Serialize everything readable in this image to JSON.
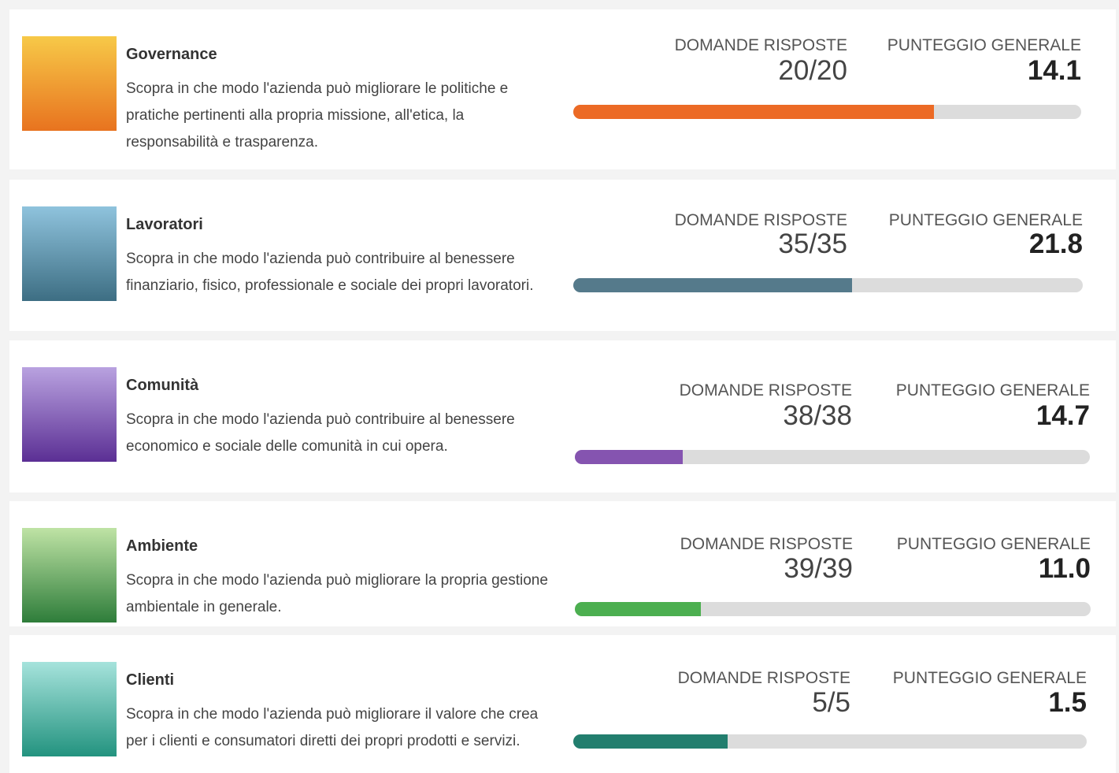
{
  "labels": {
    "answered": "DOMANDE RISPOSTE",
    "score": "PUNTEGGIO GENERALE"
  },
  "sections": [
    {
      "title": "Governance",
      "description": "Scopra in che modo l'azienda può migliorare le politiche e pratiche pertinenti alla propria missione, all'etica, la responsabilità e trasparenza.",
      "answered": "20/20",
      "score": "14.1",
      "progress": 0.71,
      "color": "#ec6a25",
      "thumb": [
        "#f7c948",
        "#e8731f"
      ]
    },
    {
      "title": "Lavoratori",
      "description": "Scopra in che modo l'azienda può contribuire al benessere finanziario, fisico, professionale e sociale dei propri lavoratori.",
      "answered": "35/35",
      "score": "21.8",
      "progress": 0.547,
      "color": "#557a8b",
      "thumb": [
        "#8fc3dd",
        "#3d6e83"
      ]
    },
    {
      "title": "Comunità",
      "description": "Scopra in che modo l'azienda può contribuire al benessere economico e sociale delle comunità in cui opera.",
      "answered": "38/38",
      "score": "14.7",
      "progress": 0.21,
      "color": "#8554b0",
      "thumb": [
        "#b9a2e0",
        "#5b2f94"
      ]
    },
    {
      "title": "Ambiente",
      "description": "Scopra in che modo l'azienda può migliorare la propria gestione ambientale in generale.",
      "answered": "39/39",
      "score": "11.0",
      "progress": 0.245,
      "color": "#4caf50",
      "thumb": [
        "#bfe3a5",
        "#2e7d3a"
      ]
    },
    {
      "title": "Clienti",
      "description": "Scopra in che modo l'azienda può migliorare il valore che crea per i clienti e consumatori diretti dei propri prodotti e servizi.",
      "answered": "5/5",
      "score": "1.5",
      "progress": 0.3,
      "color": "#227e6e",
      "thumb": [
        "#a6e3dc",
        "#23937f"
      ]
    }
  ]
}
